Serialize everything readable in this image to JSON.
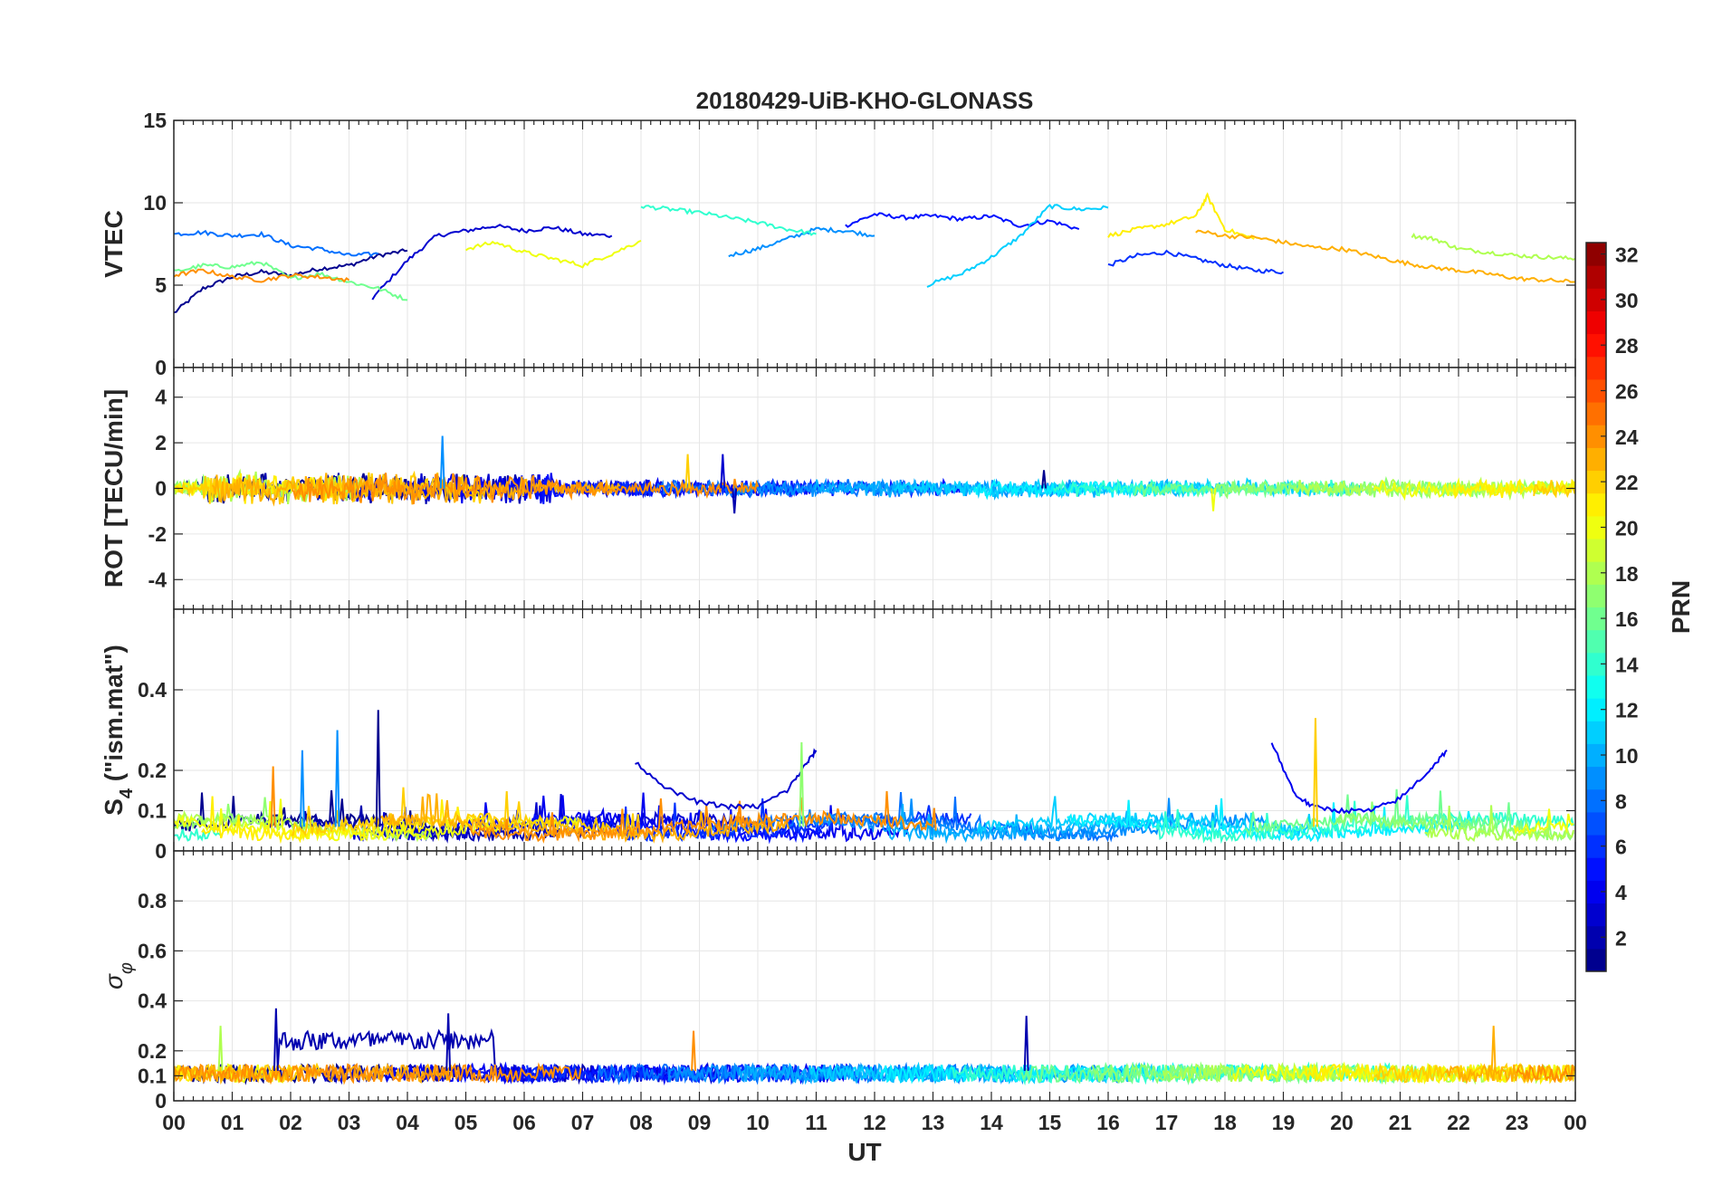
{
  "chart_data": [
    {
      "type": "line",
      "title": "20180429-UiB-KHO-GLONASS",
      "ylabel": "VTEC",
      "ylim": [
        0,
        15
      ],
      "yticks": [
        0,
        5,
        10,
        15
      ],
      "xlim": [
        0,
        24
      ],
      "series": [
        {
          "prn": 1,
          "x": [
            0,
            0.5,
            1,
            1.5,
            2,
            2.5,
            3,
            3.5,
            4
          ],
          "y": [
            3.3,
            4.8,
            5.5,
            5.8,
            5.6,
            6.0,
            6.2,
            6.8,
            7.1
          ]
        },
        {
          "prn": 3,
          "x": [
            3.4,
            4,
            4.5,
            5,
            5.5,
            6,
            6.5,
            7,
            7.5
          ],
          "y": [
            4.2,
            6.5,
            8.0,
            8.3,
            8.6,
            8.3,
            8.5,
            8.1,
            8.0
          ]
        },
        {
          "prn": 5,
          "x": [
            11.5,
            12,
            12.5,
            13,
            13.5,
            14,
            14.5,
            15,
            15.5
          ],
          "y": [
            8.6,
            9.3,
            9.1,
            9.2,
            9.0,
            9.2,
            8.6,
            8.9,
            8.4
          ]
        },
        {
          "prn": 6,
          "x": [
            16,
            16.5,
            17,
            17.5,
            18,
            18.5,
            19
          ],
          "y": [
            6.2,
            6.8,
            7.0,
            6.6,
            6.2,
            5.9,
            5.8
          ]
        },
        {
          "prn": 8,
          "x": [
            0,
            0.5,
            1,
            1.5,
            2,
            2.5,
            3,
            3.5
          ],
          "y": [
            8.1,
            8.2,
            8.0,
            8.1,
            7.4,
            7.2,
            6.8,
            6.9
          ]
        },
        {
          "prn": 9,
          "x": [
            9.5,
            10,
            10.5,
            11,
            11.5,
            12
          ],
          "y": [
            6.8,
            7.2,
            7.8,
            8.4,
            8.3,
            8.0
          ]
        },
        {
          "prn": 11,
          "x": [
            12.9,
            13.5,
            14,
            14.5,
            15,
            15.5,
            16
          ],
          "y": [
            5.0,
            5.7,
            6.7,
            8.0,
            9.8,
            9.6,
            9.7
          ]
        },
        {
          "prn": 14,
          "x": [
            8,
            8.5,
            9,
            9.5,
            10,
            10.5,
            11
          ],
          "y": [
            9.8,
            9.6,
            9.4,
            9.1,
            8.8,
            8.4,
            8.1
          ]
        },
        {
          "prn": 16,
          "x": [
            0,
            0.5,
            1,
            1.5,
            2,
            2.5,
            3,
            3.5,
            4
          ],
          "y": [
            5.8,
            6.2,
            6.1,
            6.4,
            5.4,
            5.7,
            5.2,
            4.8,
            4.1
          ]
        },
        {
          "prn": 18,
          "x": [
            21.2,
            21.6,
            22,
            22.5,
            23,
            23.5,
            24
          ],
          "y": [
            8.0,
            7.8,
            7.2,
            7.0,
            6.8,
            6.7,
            6.6
          ]
        },
        {
          "prn": 20,
          "x": [
            5,
            5.5,
            6,
            6.5,
            7,
            7.5,
            8
          ],
          "y": [
            7.2,
            7.6,
            7.0,
            6.6,
            6.2,
            6.9,
            7.7
          ]
        },
        {
          "prn": 21,
          "x": [
            16,
            16.5,
            17,
            17.5,
            17.7,
            18,
            18.5
          ],
          "y": [
            8.0,
            8.4,
            8.7,
            9.2,
            10.4,
            8.4,
            7.8
          ]
        },
        {
          "prn": 23,
          "x": [
            17.5,
            18,
            18.5,
            19,
            19.5,
            20,
            20.5,
            21,
            21.5,
            22,
            22.5,
            23,
            23.5,
            24
          ],
          "y": [
            8.3,
            8.0,
            7.9,
            7.6,
            7.3,
            7.2,
            6.8,
            6.4,
            6.1,
            5.9,
            5.7,
            5.4,
            5.3,
            5.2
          ]
        },
        {
          "prn": 24,
          "x": [
            0,
            0.5,
            1,
            1.5,
            2,
            2.5,
            3
          ],
          "y": [
            5.6,
            5.9,
            5.5,
            5.3,
            5.6,
            5.5,
            5.3
          ]
        }
      ]
    },
    {
      "type": "line",
      "ylabel": "ROT [TECU/min]",
      "ylim": [
        -5.3,
        5.3
      ],
      "yticks": [
        -4,
        -2,
        0,
        2,
        4
      ],
      "xlim": [
        0,
        24
      ],
      "spikes": [
        {
          "prn": 9,
          "x": 4.6,
          "y": 2.3
        },
        {
          "prn": 22,
          "x": 8.8,
          "y": 1.5
        },
        {
          "prn": 3,
          "x": 9.4,
          "y": 1.5
        },
        {
          "prn": 2,
          "x": 9.6,
          "y": -1.1
        },
        {
          "prn": 20,
          "x": 17.8,
          "y": -1.0
        },
        {
          "prn": 1,
          "x": 14.9,
          "y": 0.8
        }
      ]
    },
    {
      "type": "line",
      "ylabel": "S₄ (\"ism.mat\")",
      "ylim": [
        0,
        0.6
      ],
      "yticks": [
        0,
        0.1,
        0.2,
        0.4
      ],
      "xlim": [
        0,
        24
      ],
      "series": [
        {
          "prn": 3,
          "x": [
            7.9,
            8.5,
            9,
            9.5,
            10,
            10.5,
            10.8,
            11
          ],
          "y": [
            0.22,
            0.15,
            0.12,
            0.11,
            0.11,
            0.15,
            0.21,
            0.25
          ]
        },
        {
          "prn": 4,
          "x": [
            18.8,
            19.2,
            19.5,
            20,
            20.5,
            21,
            21.5,
            21.8
          ],
          "y": [
            0.27,
            0.14,
            0.11,
            0.1,
            0.1,
            0.13,
            0.2,
            0.25
          ]
        }
      ],
      "spikes": [
        {
          "prn": 1,
          "x": 3.5,
          "y": 0.35
        },
        {
          "prn": 9,
          "x": 2.8,
          "y": 0.3
        },
        {
          "prn": 22,
          "x": 19.55,
          "y": 0.33
        },
        {
          "prn": 17,
          "x": 10.75,
          "y": 0.27
        },
        {
          "prn": 24,
          "x": 1.7,
          "y": 0.21
        },
        {
          "prn": 9,
          "x": 2.2,
          "y": 0.25
        }
      ]
    },
    {
      "type": "line",
      "ylabel": "σ φ",
      "ylim": [
        0,
        1
      ],
      "yticks": [
        0,
        0.1,
        0.2,
        0.4,
        0.6,
        0.8
      ],
      "xlim": [
        0,
        24
      ],
      "xlabel": "UT",
      "xticks": [
        "00",
        "01",
        "02",
        "03",
        "04",
        "05",
        "06",
        "07",
        "08",
        "09",
        "10",
        "11",
        "12",
        "13",
        "14",
        "15",
        "16",
        "17",
        "18",
        "19",
        "20",
        "21",
        "22",
        "23",
        "00"
      ],
      "spikes": [
        {
          "prn": 2,
          "x": 1.75,
          "y": 0.37
        },
        {
          "prn": 2,
          "x": 4.7,
          "y": 0.35
        },
        {
          "prn": 2,
          "x": 14.6,
          "y": 0.34
        },
        {
          "prn": 24,
          "x": 8.9,
          "y": 0.28
        },
        {
          "prn": 23,
          "x": 22.6,
          "y": 0.3
        },
        {
          "prn": 18,
          "x": 0.8,
          "y": 0.3
        }
      ]
    }
  ],
  "colorbar": {
    "label": "PRN",
    "min": 1,
    "max": 32,
    "ticks": [
      "2",
      "4",
      "6",
      "8",
      "10",
      "12",
      "14",
      "16",
      "18",
      "20",
      "22",
      "24",
      "26",
      "28",
      "30",
      "32"
    ]
  }
}
